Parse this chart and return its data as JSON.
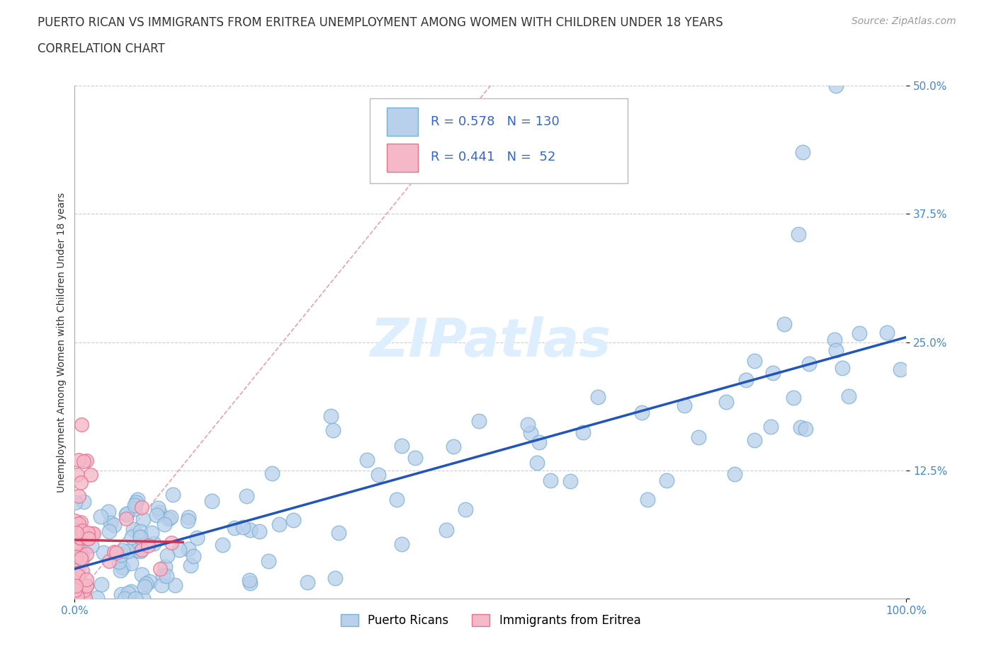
{
  "title_line1": "PUERTO RICAN VS IMMIGRANTS FROM ERITREA UNEMPLOYMENT AMONG WOMEN WITH CHILDREN UNDER 18 YEARS",
  "title_line2": "CORRELATION CHART",
  "source_text": "Source: ZipAtlas.com",
  "ylabel": "Unemployment Among Women with Children Under 18 years",
  "xlim": [
    0,
    1.0
  ],
  "ylim": [
    0,
    0.5
  ],
  "ytick_vals": [
    0,
    0.125,
    0.25,
    0.375,
    0.5
  ],
  "ytick_labels": [
    "",
    "12.5%",
    "25.0%",
    "37.5%",
    "50.0%"
  ],
  "xtick_positions": [
    0,
    1.0
  ],
  "xtick_labels": [
    "0.0%",
    "100.0%"
  ],
  "blue_R": 0.578,
  "blue_N": 130,
  "pink_R": 0.441,
  "pink_N": 52,
  "blue_color": "#b8d0ea",
  "blue_edge_color": "#7aafd4",
  "pink_color": "#f5b8c8",
  "pink_edge_color": "#e87090",
  "blue_line_color": "#2255bb",
  "pink_line_color": "#cc3355",
  "diagonal_color": "#e8a0b0",
  "grid_color": "#cccccc",
  "title_color": "#333333",
  "tick_label_color": "#4488cc",
  "watermark_color": "#ddeeff",
  "legend_R_color": "#3366cc",
  "background_color": "#ffffff",
  "title_fontsize": 12,
  "axis_label_fontsize": 10,
  "tick_label_fontsize": 11,
  "legend_fontsize": 13,
  "source_fontsize": 10
}
